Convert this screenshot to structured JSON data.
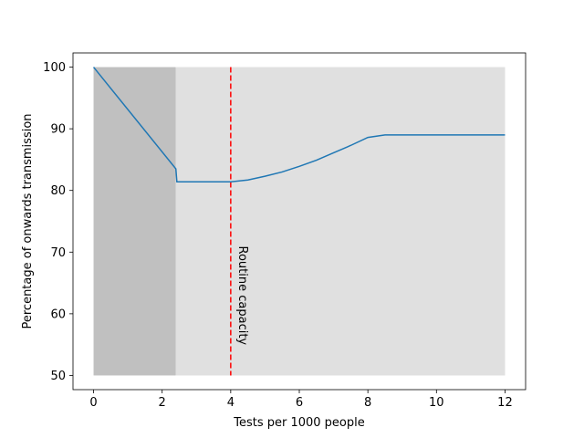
{
  "chart_data": {
    "type": "line",
    "title": "",
    "xlabel": "Tests per 1000 people",
    "ylabel": "Percentage of onwards transmission",
    "xlim": [
      -0.6,
      12.6
    ],
    "ylim": [
      47.7,
      102.3
    ],
    "x_ticks": [
      0,
      2,
      4,
      6,
      8,
      10,
      12
    ],
    "y_ticks": [
      50,
      60,
      70,
      80,
      90,
      100
    ],
    "grid": false,
    "legend": "none",
    "colors": {
      "line": "#1f77b4",
      "dark_region": "#c0c0c0",
      "light_region": "#e0e0e0",
      "capacity_line": "#ff0000"
    },
    "shaded_regions": [
      {
        "x": [
          0,
          2.4
        ],
        "y": [
          50,
          100
        ],
        "shade": "dark"
      },
      {
        "x": [
          2.4,
          12
        ],
        "y": [
          50,
          100
        ],
        "shade": "light"
      }
    ],
    "vertical_line": {
      "x": 4,
      "style": "dashed",
      "label": "Routine capacity"
    },
    "series": [
      {
        "x": [
          0,
          2.4,
          2.43,
          3,
          3.5,
          4,
          4.5,
          5,
          5.5,
          6,
          6.5,
          7,
          7.5,
          8,
          8.5,
          9,
          10,
          11,
          12
        ],
        "y": [
          100,
          83.5,
          81.4,
          81.4,
          81.4,
          81.4,
          81.7,
          82.3,
          83.0,
          83.9,
          84.9,
          86.1,
          87.3,
          88.6,
          89.0,
          89.0,
          89.0,
          89.0,
          89.0
        ]
      }
    ]
  }
}
